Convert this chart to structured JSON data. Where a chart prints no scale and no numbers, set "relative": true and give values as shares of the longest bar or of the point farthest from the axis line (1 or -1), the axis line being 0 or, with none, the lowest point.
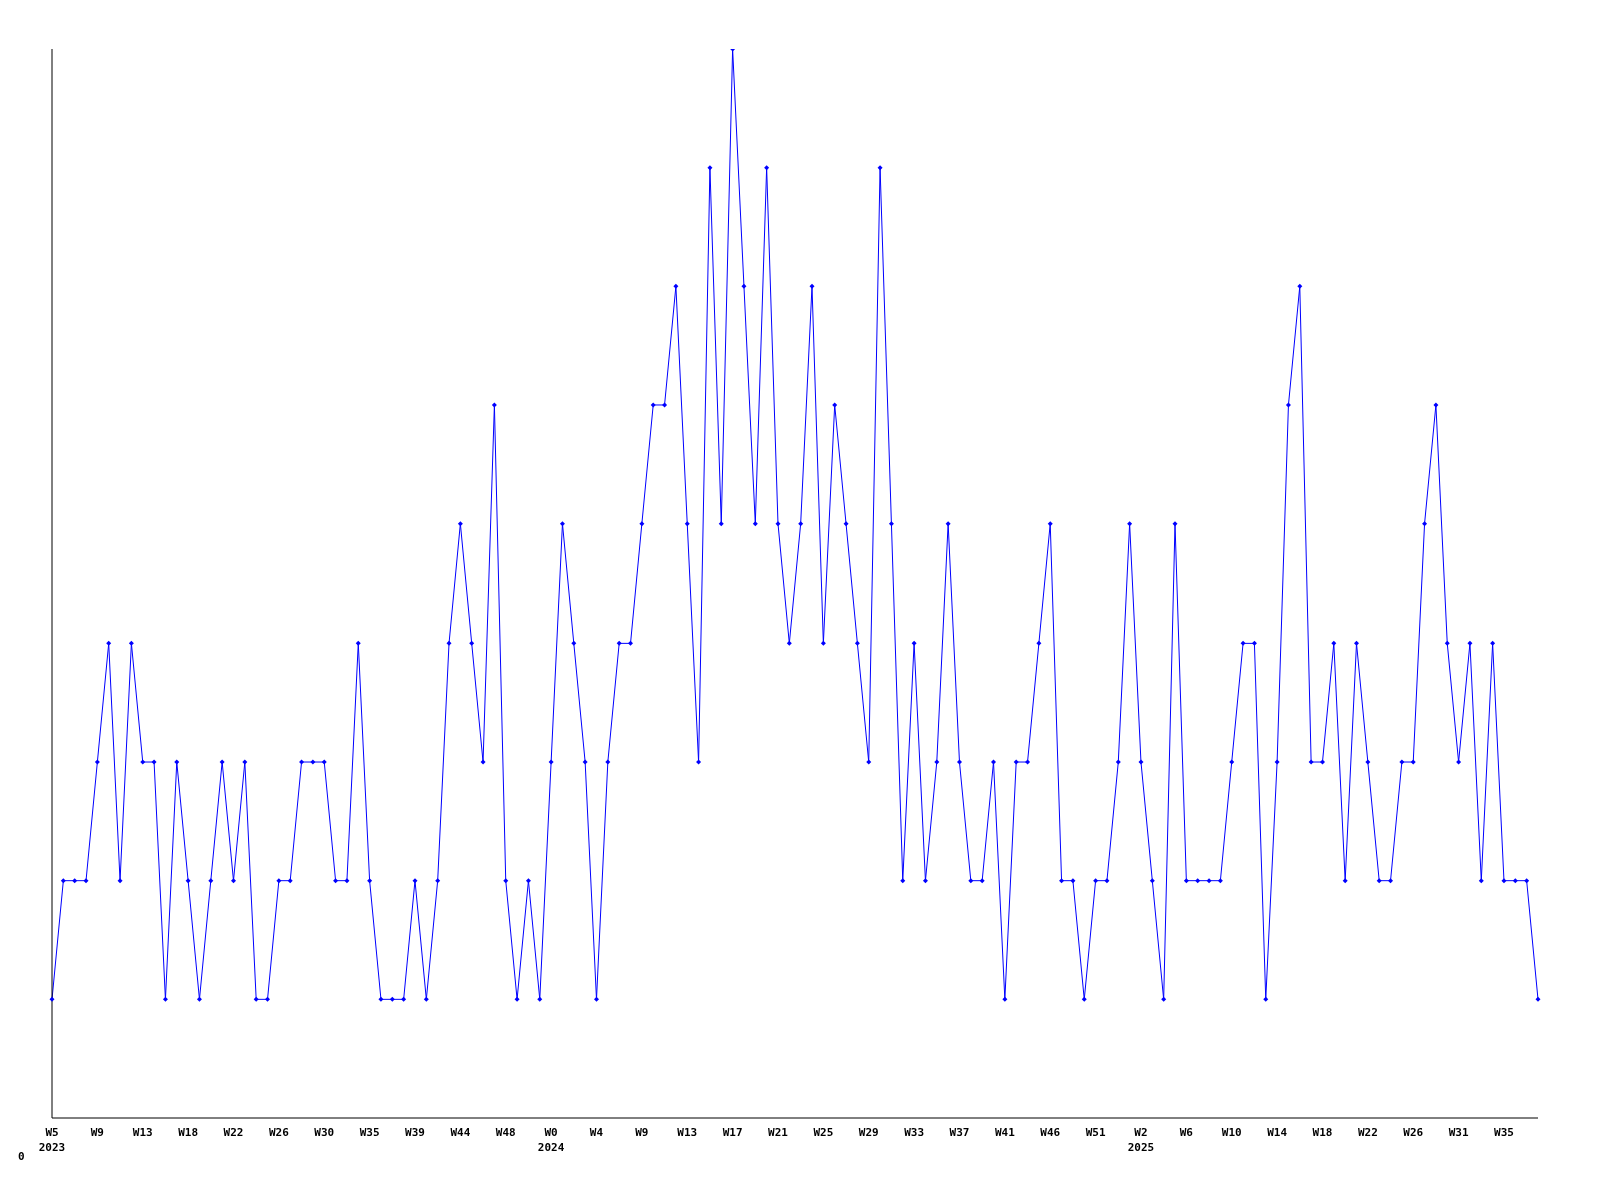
{
  "chart_data": {
    "type": "line",
    "relative": true,
    "marker": "diamond",
    "line_style": "solid",
    "grid": false,
    "legend": false,
    "annotations": [
      "0"
    ],
    "categories": [
      "W5\n2023",
      null,
      null,
      null,
      "W9",
      null,
      null,
      null,
      "W13",
      null,
      null,
      null,
      "W18",
      null,
      null,
      null,
      "W22",
      null,
      null,
      null,
      "W26",
      null,
      null,
      null,
      "W30",
      null,
      null,
      null,
      "W35",
      null,
      null,
      null,
      "W39",
      null,
      null,
      null,
      "W44",
      null,
      null,
      null,
      "W48",
      null,
      null,
      null,
      "W0\n2024",
      null,
      null,
      null,
      "W4",
      null,
      null,
      null,
      "W9",
      null,
      null,
      null,
      "W13",
      null,
      null,
      null,
      "W17",
      null,
      null,
      null,
      "W21",
      null,
      null,
      null,
      "W25",
      null,
      null,
      null,
      "W29",
      null,
      null,
      null,
      "W33",
      null,
      null,
      null,
      "W37",
      null,
      null,
      null,
      "W41",
      null,
      null,
      null,
      "W46",
      null,
      null,
      null,
      "W51",
      null,
      null,
      null,
      "W2\n2025",
      null,
      null,
      null,
      "W6",
      null,
      null,
      null,
      "W10",
      null,
      null,
      null,
      "W14",
      null,
      null,
      null,
      "W18",
      null,
      null,
      null,
      "W22",
      null,
      null,
      null,
      "W26",
      null,
      null,
      null,
      "W31",
      null,
      null,
      null,
      "W35",
      null,
      null,
      null
    ],
    "series": [
      {
        "color": "#0000ff",
        "values": [
          0.111,
          0.222,
          0.222,
          0.222,
          0.333,
          0.444,
          0.222,
          0.444,
          0.333,
          0.333,
          0.111,
          0.333,
          0.222,
          0.111,
          0.222,
          0.333,
          0.222,
          0.333,
          0.111,
          0.111,
          0.222,
          0.222,
          0.333,
          0.333,
          0.333,
          0.222,
          0.222,
          0.444,
          0.222,
          0.111,
          0.111,
          0.111,
          0.222,
          0.111,
          0.222,
          0.444,
          0.556,
          0.444,
          0.333,
          0.667,
          0.222,
          0.111,
          0.222,
          0.111,
          0.333,
          0.556,
          0.444,
          0.333,
          0.111,
          0.333,
          0.444,
          0.444,
          0.556,
          0.667,
          0.667,
          0.778,
          0.556,
          0.333,
          0.889,
          0.556,
          1,
          0.778,
          0.556,
          0.889,
          0.556,
          0.444,
          0.556,
          0.778,
          0.444,
          0.667,
          0.556,
          0.444,
          0.333,
          0.889,
          0.556,
          0.222,
          0.444,
          0.222,
          0.333,
          0.556,
          0.333,
          0.222,
          0.222,
          0.333,
          0.111,
          0.333,
          0.333,
          0.444,
          0.556,
          0.222,
          0.222,
          0.111,
          0.222,
          0.222,
          0.333,
          0.556,
          0.333,
          0.222,
          0.111,
          0.556,
          0.222,
          0.222,
          0.222,
          0.222,
          0.333,
          0.444,
          0.444,
          0.111,
          0.333,
          0.667,
          0.778,
          0.333,
          0.333,
          0.444,
          0.222,
          0.444,
          0.333,
          0.222,
          0.222,
          0.333,
          0.333,
          0.556,
          0.667,
          0.444,
          0.333,
          0.444,
          0.222,
          0.444,
          0.222,
          0.222,
          0.222,
          0.111
        ]
      }
    ]
  }
}
